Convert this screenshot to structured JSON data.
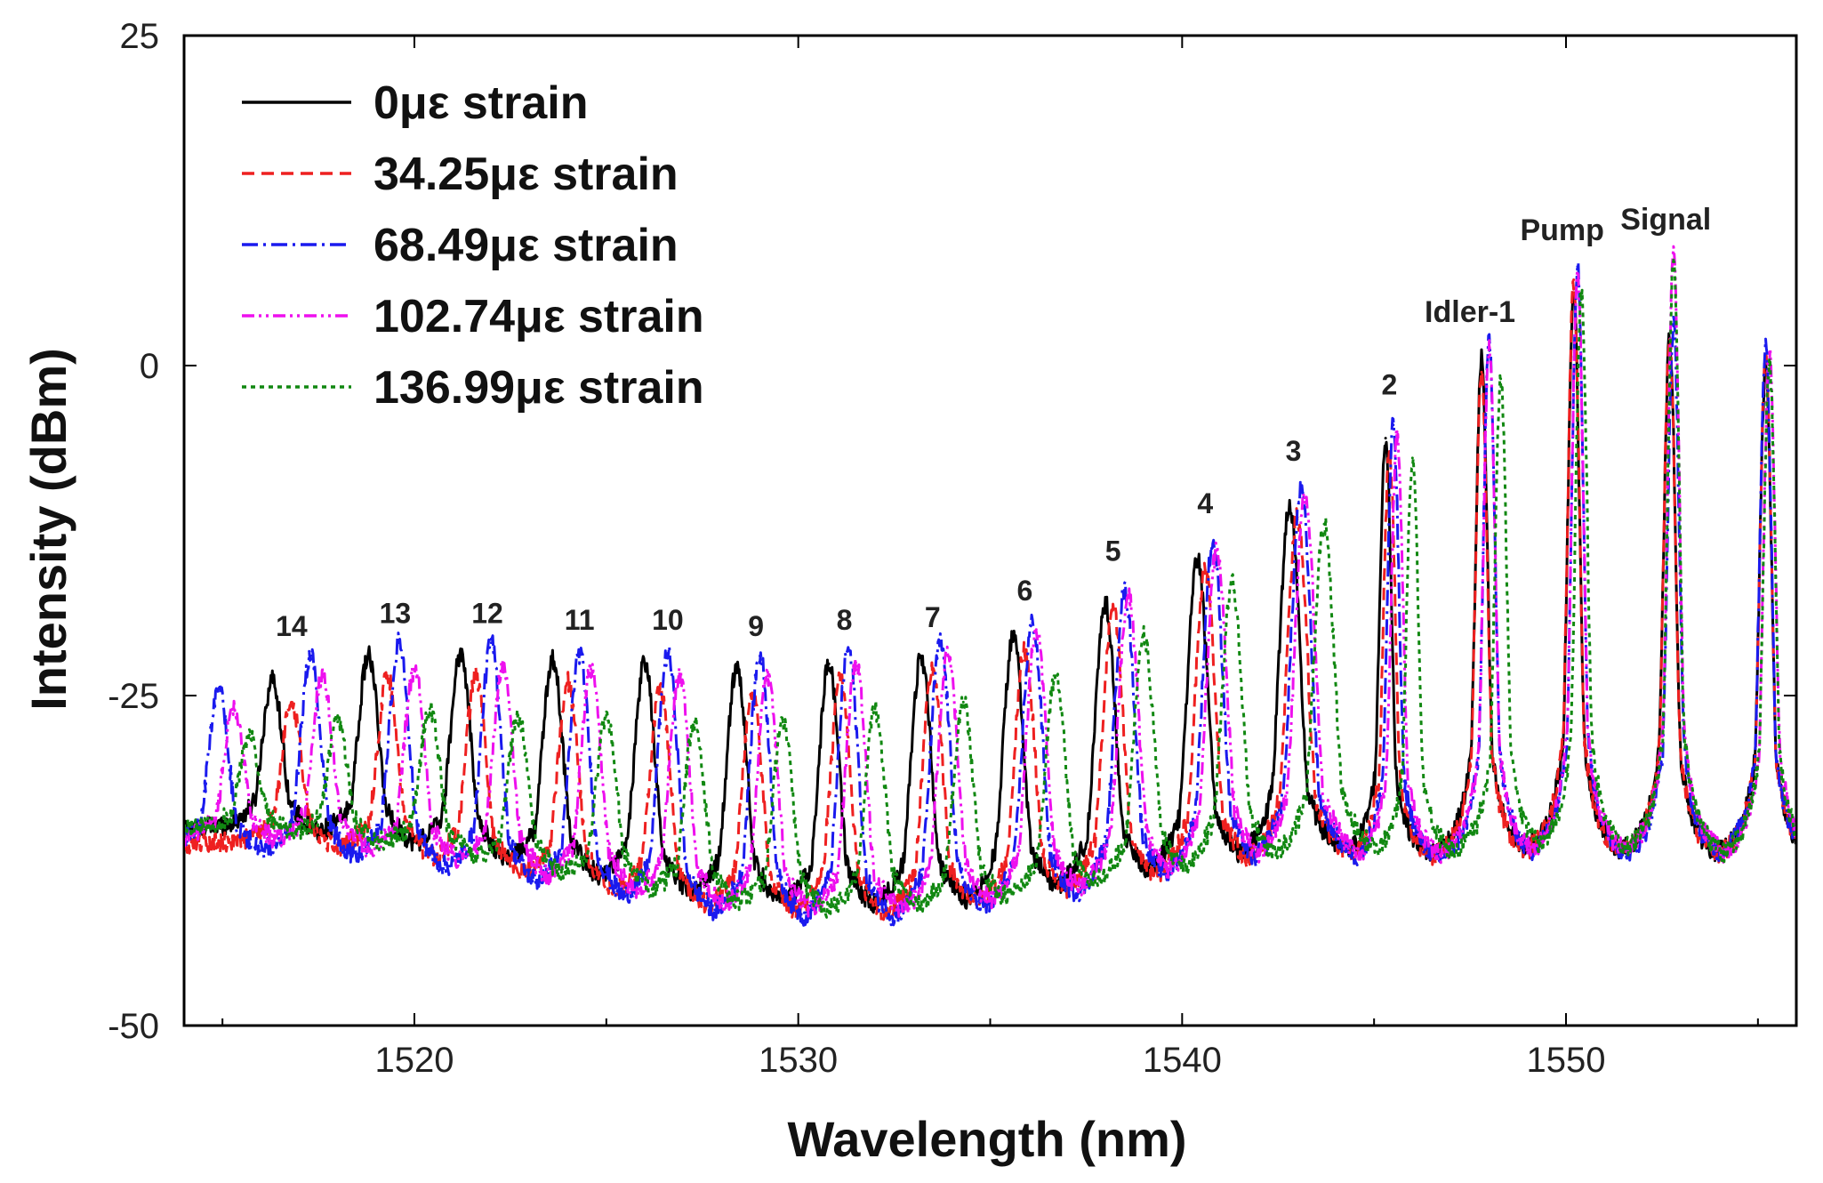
{
  "chart_data": {
    "type": "line",
    "title": "",
    "xlabel": "Wavelength (nm)",
    "ylabel": "Intensity (dBm)",
    "xlim": [
      1514,
      1556
    ],
    "ylim": [
      -50,
      25
    ],
    "x_ticks": [
      1520,
      1530,
      1540,
      1550
    ],
    "y_ticks": [
      25,
      0,
      -25,
      -50
    ],
    "legend_position": "top-left",
    "series": [
      {
        "name": "0με strain",
        "color": "#000000",
        "dash": "none",
        "peaks": [
          {
            "x": 1516.3,
            "y": -23.8
          },
          {
            "x": 1518.8,
            "y": -22.0
          },
          {
            "x": 1521.2,
            "y": -21.8
          },
          {
            "x": 1523.6,
            "y": -22.2
          },
          {
            "x": 1526.0,
            "y": -22.5
          },
          {
            "x": 1528.4,
            "y": -22.8
          },
          {
            "x": 1530.8,
            "y": -22.6
          },
          {
            "x": 1533.2,
            "y": -22.0
          },
          {
            "x": 1535.6,
            "y": -20.5
          },
          {
            "x": 1538.0,
            "y": -18.0
          },
          {
            "x": 1540.4,
            "y": -14.7
          },
          {
            "x": 1542.8,
            "y": -10.5
          },
          {
            "x": 1545.3,
            "y": -5.5
          },
          {
            "x": 1547.8,
            "y": 0.5
          },
          {
            "x": 1550.2,
            "y": 5.5
          },
          {
            "x": 1552.7,
            "y": 2.0
          },
          {
            "x": 1555.2,
            "y": 0.0
          }
        ],
        "baseline_start": -35,
        "baseline_end": -38
      },
      {
        "name": "34.25με strain",
        "color": "#ee2020",
        "dash": "14,8",
        "peaks": [
          {
            "x": 1516.8,
            "y": -25.5
          },
          {
            "x": 1519.3,
            "y": -23.5
          },
          {
            "x": 1521.6,
            "y": -23.5
          },
          {
            "x": 1524.0,
            "y": -24.0
          },
          {
            "x": 1526.4,
            "y": -24.5
          },
          {
            "x": 1528.8,
            "y": -24.8
          },
          {
            "x": 1531.1,
            "y": -23.8
          },
          {
            "x": 1533.5,
            "y": -23.0
          },
          {
            "x": 1535.9,
            "y": -21.5
          },
          {
            "x": 1538.2,
            "y": -18.5
          },
          {
            "x": 1540.6,
            "y": -15.5
          },
          {
            "x": 1543.0,
            "y": -11.5
          },
          {
            "x": 1545.4,
            "y": -6.5
          },
          {
            "x": 1547.8,
            "y": -0.5
          },
          {
            "x": 1550.2,
            "y": 6.5
          },
          {
            "x": 1552.7,
            "y": 2.0
          },
          {
            "x": 1555.2,
            "y": 0.5
          }
        ],
        "baseline_start": -36,
        "baseline_end": -38
      },
      {
        "name": "68.49με strain",
        "color": "#1a1aee",
        "dash": "18,6,3,6",
        "peaks": [
          {
            "x": 1514.9,
            "y": -24.5
          },
          {
            "x": 1517.3,
            "y": -22.0
          },
          {
            "x": 1519.6,
            "y": -21.0
          },
          {
            "x": 1522.0,
            "y": -21.0
          },
          {
            "x": 1524.3,
            "y": -21.8
          },
          {
            "x": 1526.6,
            "y": -21.8
          },
          {
            "x": 1529.0,
            "y": -22.0
          },
          {
            "x": 1531.3,
            "y": -21.5
          },
          {
            "x": 1533.7,
            "y": -21.0
          },
          {
            "x": 1536.1,
            "y": -19.5
          },
          {
            "x": 1538.5,
            "y": -17.0
          },
          {
            "x": 1540.8,
            "y": -13.5
          },
          {
            "x": 1543.1,
            "y": -9.5
          },
          {
            "x": 1545.5,
            "y": -4.5
          },
          {
            "x": 1548.0,
            "y": 2.0
          },
          {
            "x": 1550.3,
            "y": 7.5
          },
          {
            "x": 1552.8,
            "y": 3.0
          },
          {
            "x": 1555.2,
            "y": 1.5
          }
        ],
        "baseline_start": -37,
        "baseline_end": -38
      },
      {
        "name": "102.74με strain",
        "color": "#ee10ee",
        "dash": "14,5,3,5,3,5",
        "peaks": [
          {
            "x": 1515.3,
            "y": -26.0
          },
          {
            "x": 1517.6,
            "y": -23.5
          },
          {
            "x": 1520.0,
            "y": -23.0
          },
          {
            "x": 1522.3,
            "y": -23.0
          },
          {
            "x": 1524.6,
            "y": -23.0
          },
          {
            "x": 1526.9,
            "y": -23.5
          },
          {
            "x": 1529.2,
            "y": -23.5
          },
          {
            "x": 1531.5,
            "y": -22.5
          },
          {
            "x": 1533.9,
            "y": -22.0
          },
          {
            "x": 1536.2,
            "y": -20.0
          },
          {
            "x": 1538.6,
            "y": -17.5
          },
          {
            "x": 1540.9,
            "y": -14.0
          },
          {
            "x": 1543.2,
            "y": -10.0
          },
          {
            "x": 1545.6,
            "y": -5.0
          },
          {
            "x": 1548.0,
            "y": 1.5
          },
          {
            "x": 1550.3,
            "y": 7.0
          },
          {
            "x": 1552.8,
            "y": 8.5
          },
          {
            "x": 1555.3,
            "y": 1.0
          }
        ],
        "baseline_start": -36,
        "baseline_end": -38
      },
      {
        "name": "136.99με strain",
        "color": "#118811",
        "dash": "5,5",
        "peaks": [
          {
            "x": 1515.7,
            "y": -28.0
          },
          {
            "x": 1518.0,
            "y": -27.0
          },
          {
            "x": 1520.4,
            "y": -26.0
          },
          {
            "x": 1522.7,
            "y": -26.5
          },
          {
            "x": 1525.0,
            "y": -26.5
          },
          {
            "x": 1527.3,
            "y": -27.0
          },
          {
            "x": 1529.6,
            "y": -27.0
          },
          {
            "x": 1532.0,
            "y": -26.0
          },
          {
            "x": 1534.3,
            "y": -25.5
          },
          {
            "x": 1536.7,
            "y": -23.5
          },
          {
            "x": 1539.0,
            "y": -20.5
          },
          {
            "x": 1541.3,
            "y": -16.5
          },
          {
            "x": 1543.7,
            "y": -12.0
          },
          {
            "x": 1546.0,
            "y": -7.0
          },
          {
            "x": 1548.3,
            "y": -1.0
          },
          {
            "x": 1550.4,
            "y": 5.5
          },
          {
            "x": 1552.8,
            "y": 8.0
          },
          {
            "x": 1555.3,
            "y": 0.0
          }
        ],
        "baseline_start": -35,
        "baseline_end": -38
      }
    ],
    "annotations": [
      {
        "text": "14",
        "x": 1516.8,
        "y": -20.5
      },
      {
        "text": "13",
        "x": 1519.5,
        "y": -19.5
      },
      {
        "text": "12",
        "x": 1521.9,
        "y": -19.5
      },
      {
        "text": "11",
        "x": 1524.3,
        "y": -20.0
      },
      {
        "text": "10",
        "x": 1526.6,
        "y": -20.0
      },
      {
        "text": "9",
        "x": 1528.9,
        "y": -20.5
      },
      {
        "text": "8",
        "x": 1531.2,
        "y": -20.0
      },
      {
        "text": "7",
        "x": 1533.5,
        "y": -19.8
      },
      {
        "text": "6",
        "x": 1535.9,
        "y": -17.8
      },
      {
        "text": "5",
        "x": 1538.2,
        "y": -14.8
      },
      {
        "text": "4",
        "x": 1540.6,
        "y": -11.2
      },
      {
        "text": "3",
        "x": 1542.9,
        "y": -7.2
      },
      {
        "text": "2",
        "x": 1545.4,
        "y": -2.2
      },
      {
        "text": "Idler-1",
        "x": 1547.5,
        "y": 3.3
      },
      {
        "text": "Pump",
        "x": 1549.9,
        "y": 9.5
      },
      {
        "text": "Signal",
        "x": 1552.6,
        "y": 10.3
      }
    ]
  }
}
